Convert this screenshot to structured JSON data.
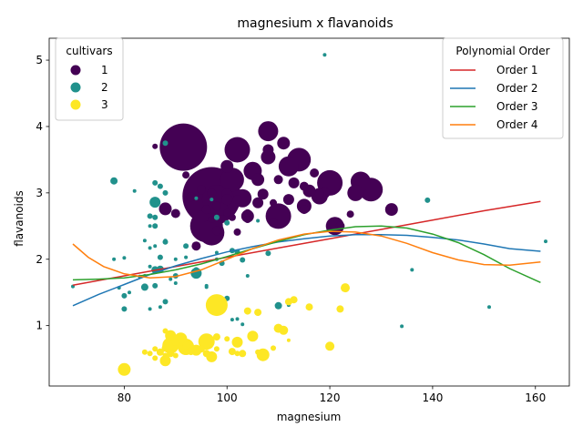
{
  "chart_data": {
    "type": "scatter",
    "title": "magnesium x flavanoids",
    "xlabel": "magnesium",
    "ylabel": "flavanoids",
    "xlim": [
      65.4,
      166.6
    ],
    "ylim": [
      0.09,
      5.33
    ],
    "xticks": [
      80,
      100,
      120,
      140,
      160
    ],
    "yticks": [
      1,
      2,
      3,
      4,
      5
    ],
    "grid": false,
    "legends": [
      {
        "title": "cultivars",
        "placement": "top-left",
        "entries": [
          {
            "label": "1",
            "color": "#440154"
          },
          {
            "label": "2",
            "color": "#21918c"
          },
          {
            "label": "3",
            "color": "#fde725"
          }
        ]
      },
      {
        "title": "Polynomial Order",
        "placement": "top-right",
        "entries": [
          {
            "label": "Order 1",
            "color": "#d62728"
          },
          {
            "label": "Order 2",
            "color": "#1f77b4"
          },
          {
            "label": "Order 3",
            "color": "#2ca02c"
          },
          {
            "label": "Order 4",
            "color": "#ff7f0e"
          }
        ]
      }
    ],
    "series": [
      {
        "name": "1",
        "color": "#440154",
        "points": [
          [
            91.5,
            3.69,
            26
          ],
          [
            97,
            2.95,
            32
          ],
          [
            96,
            2.5,
            18
          ],
          [
            97,
            2.4,
            14
          ],
          [
            98,
            2.9,
            16
          ],
          [
            102,
            3.65,
            14
          ],
          [
            108,
            3.93,
            11
          ],
          [
            114,
            3.5,
            13
          ],
          [
            120,
            3.15,
            14
          ],
          [
            128,
            3.05,
            13
          ],
          [
            126,
            3.17,
            11
          ],
          [
            110,
            2.65,
            14
          ],
          [
            101,
            3.2,
            13
          ],
          [
            103,
            2.92,
            10
          ],
          [
            105,
            3.33,
            10
          ],
          [
            112,
            3.4,
            11
          ],
          [
            121,
            2.5,
            10
          ],
          [
            118,
            2.95,
            9
          ],
          [
            111,
            3.75,
            7
          ],
          [
            108,
            3.54,
            8
          ],
          [
            115,
            2.8,
            8
          ],
          [
            125,
            3.0,
            9
          ],
          [
            132,
            2.75,
            7
          ],
          [
            106,
            3.2,
            7
          ],
          [
            116,
            3.03,
            7
          ],
          [
            99,
            2.76,
            7
          ],
          [
            104,
            2.65,
            7
          ],
          [
            88,
            2.76,
            7
          ],
          [
            100,
            3.4,
            7
          ],
          [
            108,
            3.65,
            6
          ],
          [
            93,
            2.94,
            5
          ],
          [
            96,
            2.75,
            5
          ],
          [
            100,
            2.98,
            6
          ],
          [
            102,
            2.9,
            5
          ],
          [
            112,
            2.9,
            6
          ],
          [
            117,
            3.3,
            5
          ],
          [
            119,
            3.0,
            6
          ],
          [
            109,
            2.55,
            5
          ],
          [
            97,
            3.0,
            5
          ],
          [
            95,
            3.05,
            5
          ],
          [
            90,
            2.69,
            5
          ],
          [
            94,
            2.2,
            5
          ],
          [
            98,
            2.43,
            5
          ],
          [
            100,
            2.7,
            4
          ],
          [
            104,
            2.7,
            4
          ],
          [
            92,
            3.27,
            4
          ],
          [
            115,
            3.1,
            5
          ],
          [
            118,
            2.99,
            5
          ],
          [
            124,
            2.68,
            4
          ],
          [
            110,
            3.2,
            5
          ],
          [
            106,
            2.85,
            6
          ],
          [
            113,
            3.15,
            6
          ],
          [
            98,
            2.8,
            5
          ],
          [
            101,
            2.63,
            4
          ],
          [
            86,
            3.7,
            3
          ],
          [
            102,
            2.41,
            4
          ],
          [
            97,
            2.6,
            4
          ],
          [
            122,
            2.5,
            5
          ],
          [
            104,
            2.6,
            4
          ],
          [
            115,
            2.75,
            5
          ],
          [
            109,
            2.85,
            4
          ],
          [
            100,
            2.9,
            6
          ],
          [
            107,
            2.98,
            6
          ]
        ]
      },
      {
        "name": "2",
        "color": "#21918c",
        "points": [
          [
            86,
            2.86,
            6
          ],
          [
            78,
            3.18,
            4
          ],
          [
            94,
            1.79,
            6
          ],
          [
            110,
            1.3,
            4
          ],
          [
            86,
            1.84,
            4
          ],
          [
            87,
            1.85,
            4
          ],
          [
            84,
            1.58,
            4
          ],
          [
            86,
            1.6,
            3
          ],
          [
            139,
            2.89,
            3
          ],
          [
            119,
            5.08,
            2
          ],
          [
            162,
            2.27,
            2
          ],
          [
            136,
            1.84,
            2
          ],
          [
            151,
            1.28,
            2
          ],
          [
            134,
            0.99,
            2
          ],
          [
            80,
            1.25,
            3
          ],
          [
            80,
            2.02,
            2
          ],
          [
            81,
            1.5,
            2
          ],
          [
            85,
            2.65,
            3
          ],
          [
            86,
            2.63,
            3
          ],
          [
            88,
            3.75,
            3
          ],
          [
            86,
            3.15,
            3
          ],
          [
            88,
            3.0,
            3
          ],
          [
            87,
            3.1,
            3
          ],
          [
            85,
            2.5,
            2
          ],
          [
            86,
            2.5,
            3
          ],
          [
            87,
            2.03,
            3
          ],
          [
            88,
            2.26,
            3
          ],
          [
            90,
            2.0,
            2
          ],
          [
            90,
            1.75,
            3
          ],
          [
            92,
            2.2,
            3
          ],
          [
            94,
            1.84,
            3
          ],
          [
            96,
            1.6,
            2
          ],
          [
            98,
            2.0,
            2
          ],
          [
            99,
            1.39,
            3
          ],
          [
            100,
            2.55,
            3
          ],
          [
            101,
            2.13,
            3
          ],
          [
            102,
            2.11,
            3
          ],
          [
            103,
            1.99,
            3
          ],
          [
            104,
            1.75,
            2
          ],
          [
            84,
            2.28,
            2
          ],
          [
            85,
            2.17,
            2
          ],
          [
            79,
            1.57,
            2
          ],
          [
            78,
            2.0,
            2
          ],
          [
            70,
            1.59,
            2
          ],
          [
            88,
            2.28,
            2
          ],
          [
            88,
            1.36,
            3
          ],
          [
            85,
            1.89,
            2
          ],
          [
            84,
            1.75,
            2
          ],
          [
            82,
            3.03,
            2
          ],
          [
            86,
            2.2,
            2
          ],
          [
            90,
            1.64,
            2
          ],
          [
            96,
            1.58,
            2
          ],
          [
            98,
            2.63,
            3
          ],
          [
            106,
            2.58,
            2
          ],
          [
            108,
            2.09,
            3
          ],
          [
            101,
            1.09,
            2
          ],
          [
            102,
            1.1,
            2
          ],
          [
            112,
            1.31,
            2
          ],
          [
            103,
            1.02,
            2
          ],
          [
            92,
            2.03,
            2
          ],
          [
            89,
            1.7,
            2
          ],
          [
            94,
            2.92,
            2
          ],
          [
            97,
            2.9,
            2
          ],
          [
            98,
            2.1,
            2
          ],
          [
            99,
            1.94,
            3
          ],
          [
            100,
            1.41,
            3
          ],
          [
            87,
            1.28,
            2
          ],
          [
            85,
            1.25,
            2
          ],
          [
            80,
            1.45,
            3
          ],
          [
            83,
            1.74,
            2
          ]
        ]
      },
      {
        "name": "3",
        "color": "#fde725",
        "points": [
          [
            98,
            1.31,
            12
          ],
          [
            80,
            0.34,
            7
          ],
          [
            96,
            0.76,
            9
          ],
          [
            89,
            0.7,
            9
          ],
          [
            92,
            0.68,
            9
          ],
          [
            97,
            0.53,
            6
          ],
          [
            91,
            0.8,
            7
          ],
          [
            102,
            0.75,
            6
          ],
          [
            107,
            0.56,
            7
          ],
          [
            110,
            0.96,
            5
          ],
          [
            105,
            0.84,
            6
          ],
          [
            94,
            0.63,
            6
          ],
          [
            88,
            0.47,
            6
          ],
          [
            89,
            0.85,
            6
          ],
          [
            123,
            1.57,
            5
          ],
          [
            120,
            0.69,
            5
          ],
          [
            113,
            1.39,
            4
          ],
          [
            116,
            1.28,
            4
          ],
          [
            122,
            1.25,
            4
          ],
          [
            111,
            0.93,
            5
          ],
          [
            104,
            1.22,
            4
          ],
          [
            106,
            1.2,
            4
          ],
          [
            112,
            1.36,
            4
          ],
          [
            103,
            0.58,
            4
          ],
          [
            101,
            0.61,
            4
          ],
          [
            98,
            0.83,
            4
          ],
          [
            96,
            0.58,
            4
          ],
          [
            95,
            0.65,
            4
          ],
          [
            93,
            0.61,
            4
          ],
          [
            92,
            0.7,
            4
          ],
          [
            90,
            0.75,
            4
          ],
          [
            89,
            0.58,
            4
          ],
          [
            88,
            0.66,
            4
          ],
          [
            87,
            0.6,
            4
          ],
          [
            86,
            0.51,
            3
          ],
          [
            85,
            0.58,
            3
          ],
          [
            84,
            0.6,
            3
          ],
          [
            88,
            0.92,
            3
          ],
          [
            89,
            0.63,
            3
          ],
          [
            90,
            0.55,
            3
          ],
          [
            98,
            0.65,
            3
          ],
          [
            100,
            0.8,
            3
          ],
          [
            102,
            0.58,
            3
          ],
          [
            106,
            0.6,
            3
          ],
          [
            107,
            0.6,
            3
          ],
          [
            109,
            0.66,
            3
          ],
          [
            112,
            0.78,
            2
          ],
          [
            86,
            0.65,
            3
          ],
          [
            88,
            0.55,
            3
          ],
          [
            89,
            0.6,
            3
          ]
        ]
      }
    ],
    "fit_lines": [
      {
        "name": "Order 1",
        "color": "#d62728",
        "x": [
          70,
          80,
          90,
          100,
          110,
          120,
          130,
          140,
          150,
          161
        ],
        "y": [
          1.61,
          1.75,
          1.89,
          2.03,
          2.17,
          2.31,
          2.45,
          2.59,
          2.73,
          2.87
        ]
      },
      {
        "name": "Order 2",
        "color": "#1f77b4",
        "x": [
          70,
          75,
          80,
          85,
          90,
          95,
          100,
          105,
          110,
          115,
          120,
          125,
          130,
          135,
          140,
          145,
          150,
          155,
          161
        ],
        "y": [
          1.3,
          1.47,
          1.62,
          1.77,
          1.9,
          2.01,
          2.11,
          2.19,
          2.26,
          2.31,
          2.35,
          2.37,
          2.37,
          2.36,
          2.33,
          2.29,
          2.23,
          2.16,
          2.12
        ]
      },
      {
        "name": "Order 3",
        "color": "#2ca02c",
        "x": [
          70,
          75,
          80,
          85,
          90,
          95,
          100,
          105,
          110,
          115,
          120,
          125,
          130,
          135,
          140,
          145,
          150,
          155,
          161
        ],
        "y": [
          1.69,
          1.7,
          1.72,
          1.77,
          1.84,
          1.93,
          2.04,
          2.16,
          2.27,
          2.37,
          2.44,
          2.49,
          2.5,
          2.47,
          2.38,
          2.25,
          2.07,
          1.86,
          1.65
        ]
      },
      {
        "name": "Order 4",
        "color": "#ff7f0e",
        "x": [
          70,
          73,
          76,
          80,
          85,
          90,
          95,
          100,
          105,
          110,
          115,
          120,
          125,
          130,
          135,
          140,
          145,
          150,
          155,
          161
        ],
        "y": [
          2.23,
          2.03,
          1.89,
          1.78,
          1.72,
          1.74,
          1.84,
          2.0,
          2.16,
          2.29,
          2.38,
          2.42,
          2.41,
          2.35,
          2.24,
          2.1,
          1.99,
          1.92,
          1.91,
          1.96
        ]
      }
    ]
  }
}
